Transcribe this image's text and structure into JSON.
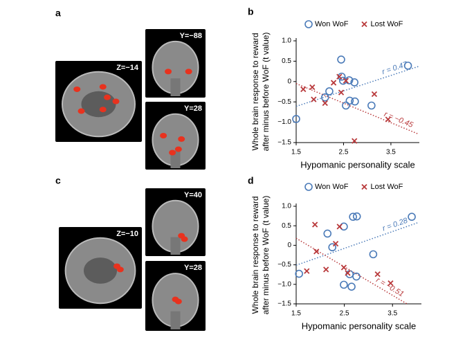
{
  "panels": [
    {
      "label": "a",
      "images": [
        "Z=−14",
        "Y=−88",
        "Y=28"
      ]
    },
    {
      "label": "c",
      "images": [
        "Z=−10",
        "Y=40",
        "Y=28"
      ]
    }
  ],
  "chart_data": [
    {
      "type": "scatter",
      "panel": "b",
      "x_label": "Hypomanic personality scale",
      "y_label": [
        "Whole brain response to reward",
        "after minus before WoF (t value)"
      ],
      "xlim": [
        1.5,
        4.1
      ],
      "ylim": [
        -1.5,
        1.0
      ],
      "xticks": [
        1.5,
        2.5,
        3.5
      ],
      "yticks": [
        {
          "value": -1.5,
          "label": "−1.5"
        },
        {
          "value": -1.0,
          "label": "−1.0"
        },
        {
          "value": -0.5,
          "label": "−0.5"
        },
        0,
        {
          "value": 0.5,
          "label": "0.5"
        },
        {
          "value": 1.0,
          "label": "1.0"
        }
      ],
      "legend": "top",
      "series": [
        {
          "name": "Won WoF",
          "color": "#4a7ab8",
          "marker": "circle",
          "x": [
            1.5,
            2.11,
            2.2,
            2.45,
            2.46,
            2.49,
            2.55,
            2.62,
            2.63,
            2.73,
            2.74,
            3.09,
            3.86
          ],
          "values": [
            -0.92,
            -0.39,
            -0.24,
            0.54,
            0.12,
            0.02,
            -0.59,
            0.03,
            -0.47,
            -0.02,
            -0.49,
            -0.59,
            0.39
          ]
        },
        {
          "name": "Lost WoF",
          "color": "#b8383a",
          "marker": "cross",
          "x": [
            1.65,
            1.84,
            1.87,
            2.11,
            2.29,
            2.41,
            2.45,
            2.55,
            2.73,
            3.15,
            3.44
          ],
          "values": [
            -0.19,
            -0.14,
            -0.44,
            -0.53,
            -0.03,
            0.12,
            -0.27,
            0.02,
            -1.46,
            -0.31,
            -0.93
          ]
        }
      ],
      "trendlines": [
        {
          "color": "#4a7ab8",
          "x": [
            1.5,
            4.08
          ],
          "y": [
            -0.61,
            0.37
          ],
          "label": "r = 0.47"
        },
        {
          "color": "#b8383a",
          "x": [
            1.5,
            4.08
          ],
          "y": [
            -0.05,
            -1.29
          ],
          "label": "r = −0.45"
        }
      ]
    },
    {
      "type": "scatter",
      "panel": "d",
      "x_label": "Hypomanic personality scale",
      "y_label": [
        "Whole brain response to reward",
        "after minus before WoF (t value)"
      ],
      "xlim": [
        1.5,
        4.1
      ],
      "ylim": [
        -1.5,
        1.0
      ],
      "xticks": [
        1.5,
        2.5,
        3.5
      ],
      "yticks": [
        {
          "value": -1.5,
          "label": "−1.5"
        },
        {
          "value": -1.0,
          "label": "−1.0"
        },
        {
          "value": -0.5,
          "label": "−0.5"
        },
        0,
        {
          "value": 0.5,
          "label": "0.5"
        },
        {
          "value": 1.0,
          "label": "1.0"
        }
      ],
      "legend": "top",
      "series": [
        {
          "name": "Won WoF",
          "color": "#4a7ab8",
          "marker": "circle",
          "x": [
            1.56,
            2.15,
            2.25,
            2.49,
            2.49,
            2.61,
            2.65,
            2.68,
            2.75,
            2.76,
            3.1,
            3.9
          ],
          "values": [
            -0.73,
            0.3,
            -0.05,
            0.48,
            -1.01,
            -0.74,
            -1.06,
            0.73,
            -0.8,
            0.74,
            -0.23,
            0.73
          ]
        },
        {
          "name": "Lost WoF",
          "color": "#b8383a",
          "marker": "cross",
          "x": [
            1.72,
            1.89,
            1.92,
            2.12,
            2.32,
            2.4,
            2.49,
            2.57,
            3.19,
            3.46
          ],
          "values": [
            -0.66,
            0.53,
            -0.16,
            -0.62,
            0.04,
            0.48,
            -0.57,
            -0.71,
            -0.74,
            -0.97
          ]
        }
      ],
      "trendlines": [
        {
          "color": "#4a7ab8",
          "x": [
            1.5,
            4.05
          ],
          "y": [
            -0.51,
            0.59
          ],
          "label": "r = 0.28"
        },
        {
          "color": "#b8383a",
          "x": [
            1.5,
            3.8
          ],
          "y": [
            0.18,
            -1.5
          ],
          "label": "r = −0.51"
        }
      ]
    }
  ]
}
